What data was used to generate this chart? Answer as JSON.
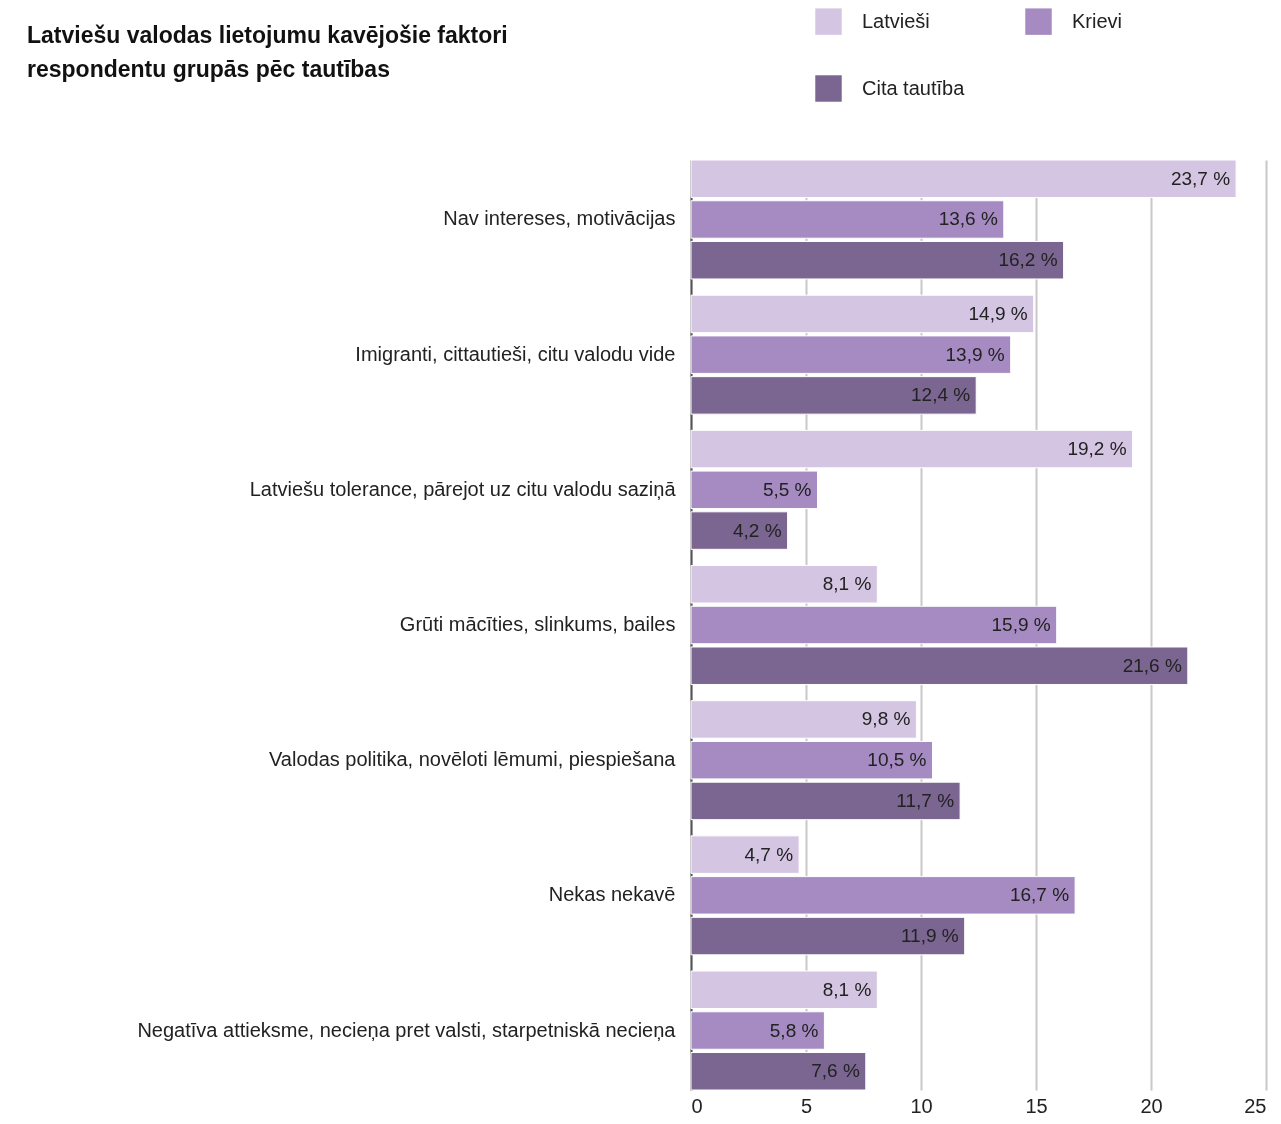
{
  "chart_data": {
    "type": "bar",
    "orientation": "horizontal",
    "title": "Latviešu valodas lietojumu kavējošie faktori respondentu grupās pēc tautības",
    "categories": [
      "Nav intereses, motivācijas",
      "Imigranti, cittautieši, citu valodu vide",
      "Latviešu tolerance, pārejot uz citu valodu saziņā",
      "Grūti mācīties, slinkums, bailes",
      "Valodas politika, novēloti lēmumi, piespiešana",
      "Nekas nekavē",
      "Negatīva attieksme, necieņa pret valsti, starpetniskā necieņa"
    ],
    "series": [
      {
        "name": "Latvieši",
        "color": "#d4c5e2",
        "values": [
          23.7,
          14.9,
          19.2,
          8.1,
          9.8,
          4.7,
          8.1
        ],
        "value_labels": [
          "23,7 %",
          "14,9 %",
          "19,2 %",
          "8,1 %",
          "9,8 %",
          "4,7 %",
          "8,1 %"
        ]
      },
      {
        "name": "Krievi",
        "color": "#a58bc2",
        "values": [
          13.6,
          13.9,
          5.5,
          15.9,
          10.5,
          16.7,
          5.8
        ],
        "value_labels": [
          "13,6 %",
          "13,9 %",
          "5,5 %",
          "15,9 %",
          "10,5 %",
          "16,7 %",
          "5,8 %"
        ]
      },
      {
        "name": "Cita tautība",
        "color": "#7b6591",
        "values": [
          16.2,
          12.4,
          4.2,
          21.6,
          11.7,
          11.9,
          7.6
        ],
        "value_labels": [
          "16,2 %",
          "12,4 %",
          "4,2 %",
          "21,6 %",
          "11,7 %",
          "11,9 %",
          "7,6 %"
        ]
      }
    ],
    "xlim": [
      0,
      25
    ],
    "xticks": [
      0,
      5,
      10,
      15,
      20,
      25
    ],
    "grid": "x",
    "legend": "top right"
  }
}
